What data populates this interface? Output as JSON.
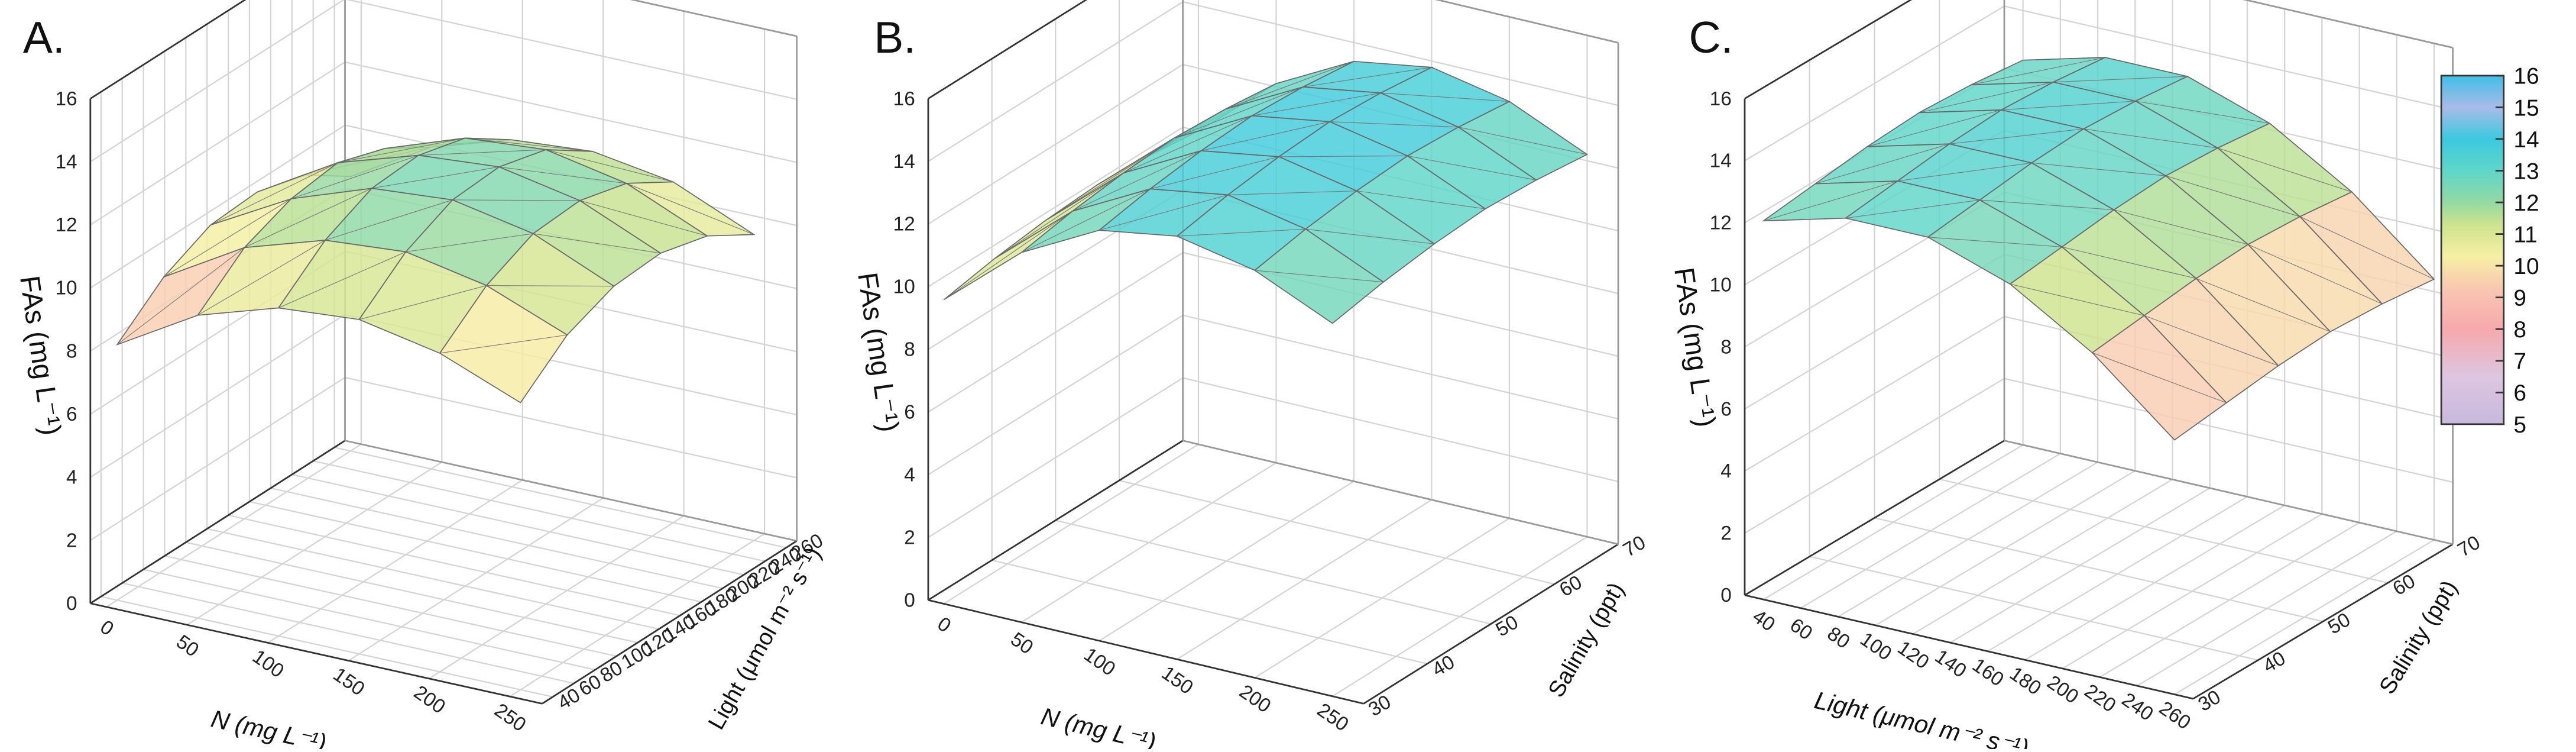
{
  "chart_data": [
    {
      "type": "surface",
      "panel_label": "A.",
      "xlabel": "N (mg L⁻¹)",
      "ylabel": "Light (μmol m⁻² s⁻¹)",
      "zlabel": "FAs (mg L⁻¹)",
      "xlim": [
        -10,
        270
      ],
      "xticks": [
        0,
        50,
        100,
        150,
        200,
        250
      ],
      "ylim": [
        30,
        270
      ],
      "yticks": [
        40,
        60,
        80,
        100,
        120,
        140,
        160,
        180,
        200,
        220,
        240,
        260
      ],
      "zlim": [
        0,
        16
      ],
      "zticks": [
        0,
        2,
        4,
        6,
        8,
        10,
        12,
        14,
        16
      ],
      "x": [
        0,
        50,
        100,
        150,
        200,
        250
      ],
      "y": [
        40,
        84,
        128,
        172,
        216,
        260
      ],
      "z": [
        [
          8.1,
          9.3,
          10.0,
          10.1,
          9.7,
          8.7
        ],
        [
          9.6,
          10.8,
          11.4,
          11.6,
          11.1,
          10.2
        ],
        [
          10.4,
          11.6,
          12.3,
          12.4,
          12.0,
          11.0
        ],
        [
          10.6,
          11.8,
          12.5,
          12.6,
          12.2,
          11.2
        ],
        [
          10.1,
          11.3,
          12.0,
          12.1,
          11.7,
          10.8
        ],
        [
          9.1,
          10.3,
          10.9,
          11.0,
          10.6,
          9.7
        ]
      ]
    },
    {
      "type": "surface",
      "panel_label": "B.",
      "xlabel": "N (mg L⁻¹)",
      "ylabel": "Salinity (ppt)",
      "zlabel": "FAs (mg L⁻¹)",
      "xlim": [
        -10,
        270
      ],
      "xticks": [
        0,
        50,
        100,
        150,
        200,
        250
      ],
      "ylim": [
        30,
        70
      ],
      "yticks": [
        30,
        40,
        50,
        60,
        70
      ],
      "zlim": [
        0,
        16
      ],
      "zticks": [
        0,
        2,
        4,
        6,
        8,
        10,
        12,
        14,
        16
      ],
      "x": [
        0,
        50,
        100,
        150,
        200,
        250
      ],
      "y": [
        30,
        38,
        46,
        54,
        62,
        70
      ],
      "z": [
        [
          9.7,
          10.0,
          10.2,
          10.3,
          10.2,
          10.0
        ],
        [
          11.8,
          12.1,
          12.3,
          12.4,
          12.3,
          12.1
        ],
        [
          13.1,
          13.4,
          13.6,
          13.7,
          13.6,
          13.4
        ],
        [
          13.5,
          13.8,
          14.0,
          14.1,
          14.0,
          13.8
        ],
        [
          13.0,
          13.3,
          13.5,
          13.6,
          13.5,
          13.3
        ],
        [
          11.9,
          12.2,
          12.4,
          12.5,
          12.4,
          12.2
        ]
      ]
    },
    {
      "type": "surface",
      "panel_label": "C.",
      "xlabel": "Light (μmol m⁻² s⁻¹)",
      "ylabel": "Salinity (ppt)",
      "zlabel": "FAs (mg L⁻¹)",
      "xlim": [
        30,
        270
      ],
      "xticks": [
        40,
        60,
        80,
        100,
        120,
        140,
        160,
        180,
        200,
        220,
        240,
        260
      ],
      "ylim": [
        30,
        70
      ],
      "yticks": [
        30,
        40,
        50,
        60,
        70
      ],
      "zlim": [
        0,
        16
      ],
      "zticks": [
        0,
        2,
        4,
        6,
        8,
        10,
        12,
        14,
        16
      ],
      "x": [
        40,
        84,
        128,
        172,
        216,
        260
      ],
      "y": [
        30,
        38,
        46,
        54,
        62,
        70
      ],
      "z": [
        [
          12.2,
          12.4,
          12.6,
          12.7,
          12.6,
          12.4
        ],
        [
          12.9,
          13.1,
          13.3,
          13.4,
          13.3,
          13.1
        ],
        [
          12.9,
          13.1,
          13.3,
          13.4,
          13.3,
          13.1
        ],
        [
          12.0,
          12.2,
          12.4,
          12.5,
          12.4,
          12.2
        ],
        [
          10.4,
          10.6,
          10.8,
          10.9,
          10.8,
          10.6
        ],
        [
          8.2,
          8.4,
          8.6,
          8.7,
          8.6,
          8.4
        ]
      ],
      "colorbar": {
        "lim": [
          5,
          16
        ],
        "ticks": [
          5,
          6,
          7,
          8,
          9,
          10,
          11,
          12,
          13,
          14,
          15,
          16
        ],
        "colorscale": [
          [
            5,
            "#c7b9de"
          ],
          [
            6.5,
            "#ddc6e0"
          ],
          [
            8,
            "#f6a9ad"
          ],
          [
            9.3,
            "#f9c8b2"
          ],
          [
            10.3,
            "#f6f0a4"
          ],
          [
            11.3,
            "#cde38e"
          ],
          [
            12,
            "#93d9a3"
          ],
          [
            13,
            "#5fd6c9"
          ],
          [
            14,
            "#3cc9df"
          ],
          [
            15,
            "#a9bbe8"
          ],
          [
            16,
            "#3fbfe8"
          ]
        ]
      }
    }
  ]
}
